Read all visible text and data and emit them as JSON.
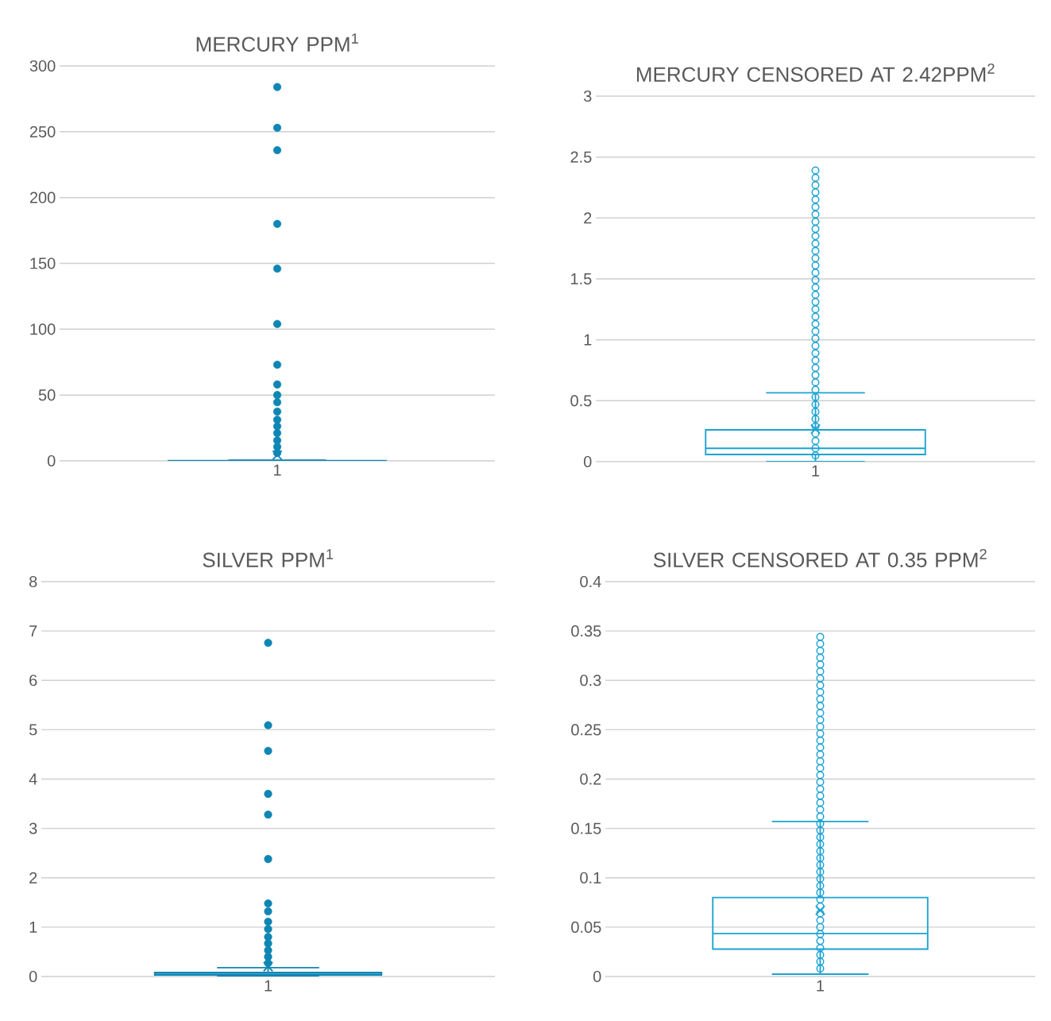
{
  "chart_data": [
    {
      "type": "box",
      "title": "MERCURY PPM$^{1}$",
      "categories": [
        "1"
      ],
      "ylim": [
        0,
        300
      ],
      "yticks": [
        0,
        50,
        100,
        150,
        200,
        250,
        300
      ],
      "grid": "y",
      "marker": "circle",
      "series": [
        {
          "color": "#0f86b4",
          "boxes": [
            {
              "low": 0,
              "q1": 0.06,
              "median": 0.11,
              "q3": 0.26,
              "high": 0.56,
              "mean": 4.4,
              "outliers": [
                284,
                253,
                236,
                180,
                146,
                104,
                73,
                58,
                50,
                44.5,
                37.4,
                31.2,
                26.2,
                21.1,
                15.5,
                10.7,
                6
              ]
            }
          ]
        }
      ]
    },
    {
      "type": "box",
      "title": "MERCURY CENSORED AT 2.42PPM$^{2}$",
      "categories": [
        "1"
      ],
      "ylim": [
        0,
        3
      ],
      "yticks": [
        0,
        0.5,
        1,
        1.5,
        2,
        2.5,
        3
      ],
      "grid": "y",
      "marker": "circle",
      "series": [
        {
          "color": "#1ba3d3",
          "boxes": [
            {
              "low": 0,
              "q1": 0.059,
              "median": 0.109,
              "q3": 0.261,
              "high": 0.565,
              "mean": 0.267
            }
          ]
        },
        {
          "type": "scatter",
          "color": "#1ba3d3",
          "x": [
            "1",
            "1",
            "1",
            "1",
            "1",
            "1",
            "1",
            "1",
            "1",
            "1",
            "1",
            "1",
            "1",
            "1",
            "1",
            "1",
            "1",
            "1",
            "1",
            "1",
            "1",
            "1",
            "1",
            "1",
            "1",
            "1",
            "1",
            "1",
            "1",
            "1",
            "1",
            "1",
            "1",
            "1",
            "1",
            "1",
            "1",
            "1",
            "1",
            "1"
          ],
          "values": [
            2.39,
            2.33,
            2.27,
            2.21,
            2.15,
            2.09,
            2.03,
            1.97,
            1.91,
            1.85,
            1.79,
            1.73,
            1.67,
            1.61,
            1.55,
            1.49,
            1.43,
            1.37,
            1.31,
            1.25,
            1.19,
            1.13,
            1.07,
            1.01,
            0.95,
            0.89,
            0.83,
            0.77,
            0.71,
            0.65,
            0.59,
            0.53,
            0.47,
            0.41,
            0.35,
            0.29,
            0.23,
            0.17,
            0.11,
            0.05
          ]
        }
      ]
    },
    {
      "type": "box",
      "title": "SILVER PPM$^{1}$",
      "categories": [
        "1"
      ],
      "ylim": [
        0,
        8
      ],
      "yticks": [
        0,
        1,
        2,
        3,
        4,
        5,
        6,
        7,
        8
      ],
      "grid": "y",
      "marker": "circle",
      "series": [
        {
          "color": "#0f86b4",
          "boxes": [
            {
              "low": 0.003,
              "q1": 0.03,
              "median": 0.045,
              "q3": 0.08,
              "high": 0.18,
              "mean": 0.2,
              "outliers": [
                6.76,
                5.09,
                4.57,
                3.7,
                3.28,
                2.38,
                1.48,
                1.32,
                1.11,
                0.96,
                0.8,
                0.67,
                0.53,
                0.4,
                0.27
              ]
            }
          ]
        }
      ]
    },
    {
      "type": "box",
      "title": "SILVER CENSORED AT 0.35 PPM$^{2}$",
      "categories": [
        "1"
      ],
      "ylim": [
        0,
        0.4
      ],
      "yticks": [
        0,
        0.05,
        0.1,
        0.15,
        0.2,
        0.25,
        0.3,
        0.35,
        0.4
      ],
      "grid": "y",
      "marker": "circle",
      "series": [
        {
          "color": "#1ba3d3",
          "boxes": [
            {
              "low": 0.0024,
              "q1": 0.0278,
              "median": 0.0436,
              "q3": 0.08,
              "high": 0.157,
              "mean": 0.067
            }
          ]
        },
        {
          "type": "scatter",
          "color": "#1ba3d3",
          "x": [
            "1",
            "1",
            "1",
            "1",
            "1",
            "1",
            "1",
            "1",
            "1",
            "1",
            "1",
            "1",
            "1",
            "1",
            "1",
            "1",
            "1",
            "1",
            "1",
            "1",
            "1",
            "1",
            "1",
            "1",
            "1",
            "1",
            "1",
            "1",
            "1",
            "1",
            "1",
            "1",
            "1",
            "1",
            "1",
            "1",
            "1",
            "1",
            "1",
            "1",
            "1",
            "1",
            "1",
            "1",
            "1",
            "1",
            "1",
            "1",
            "1"
          ],
          "values": [
            0.344,
            0.337,
            0.33,
            0.323,
            0.316,
            0.309,
            0.302,
            0.295,
            0.288,
            0.281,
            0.274,
            0.267,
            0.26,
            0.253,
            0.246,
            0.239,
            0.232,
            0.225,
            0.218,
            0.211,
            0.204,
            0.197,
            0.19,
            0.183,
            0.176,
            0.169,
            0.162,
            0.155,
            0.148,
            0.141,
            0.134,
            0.127,
            0.12,
            0.113,
            0.106,
            0.099,
            0.092,
            0.085,
            0.078,
            0.071,
            0.064,
            0.057,
            0.05,
            0.043,
            0.036,
            0.029,
            0.022,
            0.015,
            0.008
          ]
        }
      ]
    }
  ]
}
